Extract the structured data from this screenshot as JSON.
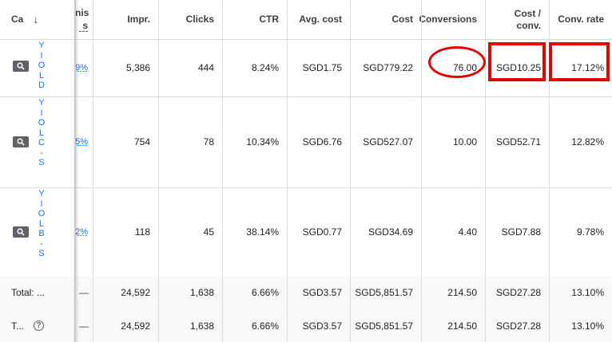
{
  "header": {
    "campaign": "Ca",
    "sort_arrow": "↓",
    "trunc_line1": "nis",
    "trunc_line2": "s",
    "impr": "Impr.",
    "clicks": "Clicks",
    "ctr": "CTR",
    "avg_cost": "Avg. cost",
    "cost": "Cost",
    "conversions": "Conversions",
    "cost_conv_1": "Cost /",
    "cost_conv_2": "conv.",
    "conv_rate": "Conv. rate"
  },
  "rows": [
    {
      "name_chars": "Y\nI\nO\nL\nD\n",
      "trunc": "9%",
      "impr": "5,386",
      "clicks": "444",
      "ctr": "8.24%",
      "avg_cost": "SGD1.75",
      "cost": "SGD779.22",
      "conversions": "76.00",
      "cost_conv": "SGD10.25",
      "conv_rate": "17.12%"
    },
    {
      "name_chars": "Y\nI\nO\nL\nC\n-\nS\n",
      "trunc": "5%",
      "impr": "754",
      "clicks": "78",
      "ctr": "10.34%",
      "avg_cost": "SGD6.76",
      "cost": "SGD527.07",
      "conversions": "10.00",
      "cost_conv": "SGD52.71",
      "conv_rate": "12.82%"
    },
    {
      "name_chars": "Y\nI\nO\nL\nB\n-\nS",
      "trunc": "2%",
      "impr": "118",
      "clicks": "45",
      "ctr": "38.14%",
      "avg_cost": "SGD0.77",
      "cost": "SGD34.69",
      "conversions": "4.40",
      "cost_conv": "SGD7.88",
      "conv_rate": "9.78%"
    }
  ],
  "totals": [
    {
      "label": "Total: ...",
      "trunc": "—",
      "impr": "24,592",
      "clicks": "1,638",
      "ctr": "6.66%",
      "avg_cost": "SGD3.57",
      "cost": "SGD5,851.57",
      "conversions": "214.50",
      "cost_conv": "SGD27.28",
      "conv_rate": "13.10%"
    },
    {
      "label": "T...",
      "help": "?",
      "trunc": "—",
      "impr": "24,592",
      "clicks": "1,638",
      "ctr": "6.66%",
      "avg_cost": "SGD3.57",
      "cost": "SGD5,851.57",
      "conversions": "214.50",
      "cost_conv": "SGD27.28",
      "conv_rate": "13.10%"
    }
  ],
  "annotation_color": "#e30000"
}
